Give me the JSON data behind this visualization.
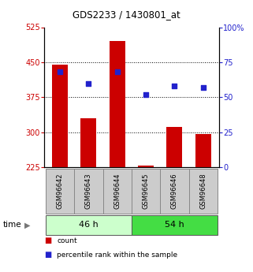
{
  "title": "GDS2233 / 1430801_at",
  "samples": [
    "GSM96642",
    "GSM96643",
    "GSM96644",
    "GSM96645",
    "GSM96646",
    "GSM96648"
  ],
  "bar_values": [
    445,
    330,
    495,
    228,
    312,
    297
  ],
  "percentile_values": [
    68,
    60,
    68,
    52,
    58,
    57
  ],
  "bar_color": "#cc0000",
  "percentile_color": "#2222cc",
  "ylim_left": [
    225,
    525
  ],
  "ylim_right": [
    0,
    100
  ],
  "yticks_left": [
    225,
    300,
    375,
    450,
    525
  ],
  "yticks_right": [
    0,
    25,
    50,
    75,
    100
  ],
  "grid_values": [
    300,
    375,
    450
  ],
  "groups": [
    {
      "label": "46 h",
      "start": 0,
      "end": 2,
      "color": "#ccffcc"
    },
    {
      "label": "54 h",
      "start": 3,
      "end": 5,
      "color": "#44dd44"
    }
  ],
  "time_label": "time",
  "legend_items": [
    {
      "label": "count",
      "color": "#cc0000"
    },
    {
      "label": "percentile rank within the sample",
      "color": "#2222cc"
    }
  ],
  "bar_bottom": 225,
  "bar_width": 0.55,
  "sample_box_color": "#cccccc",
  "sample_box_edge": "#888888"
}
